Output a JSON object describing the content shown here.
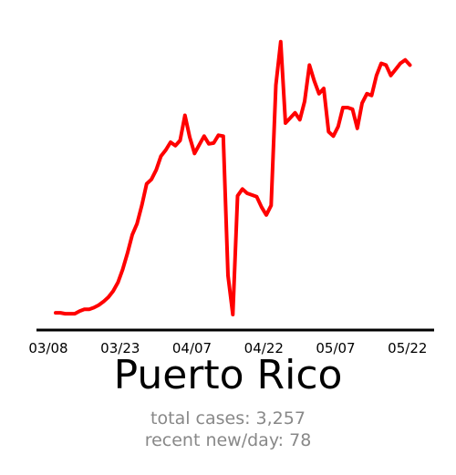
{
  "chart_data": {
    "type": "line",
    "title": "Puerto Rico",
    "xlabel": "",
    "ylabel": "",
    "x_tick_labels": [
      "03/08",
      "03/23",
      "04/07",
      "04/22",
      "05/07",
      "05/22"
    ],
    "x_tick_day_offsets": [
      0,
      15,
      30,
      45,
      60,
      75
    ],
    "series": [
      {
        "color": "#ff0000",
        "values": [
          2,
          2,
          1,
          1,
          1,
          4,
          6,
          6,
          8,
          11,
          15,
          20,
          27,
          37,
          52,
          71,
          92,
          105,
          126,
          151,
          156,
          167,
          183,
          190,
          199,
          195,
          201,
          230,
          205,
          186,
          196,
          206,
          197,
          198,
          207,
          206,
          45,
          0,
          137,
          145,
          140,
          138,
          136,
          124,
          115,
          126,
          265,
          315,
          221,
          227,
          233,
          225,
          246,
          288,
          270,
          255,
          261,
          211,
          206,
          217,
          239,
          239,
          237,
          215,
          244,
          255,
          253,
          276,
          290,
          288,
          276,
          283,
          290,
          294,
          288
        ]
      }
    ],
    "y_range": [
      0,
      320
    ],
    "grid": false,
    "legend": "none"
  },
  "stats": {
    "total_cases": "total cases: 3,257",
    "recent_new_per_day": "recent new/day: 78"
  }
}
